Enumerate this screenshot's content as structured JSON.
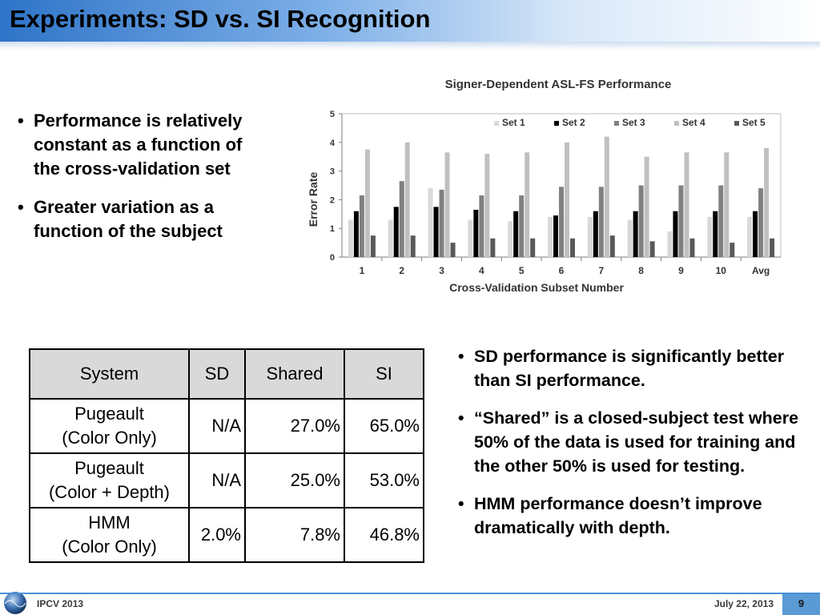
{
  "slide": {
    "title": "Experiments: SD vs. SI Recognition",
    "colors": {
      "title_gradient_start": "#2e74c8",
      "footer_line": "#4a90d9",
      "page_box": "#5b9bd5"
    }
  },
  "left_bullets": [
    "Performance is relatively constant as a function of the cross-validation set",
    "Greater variation as a function of the subject"
  ],
  "right_bullets": [
    "SD performance is significantly better than SI performance.",
    "“Shared” is a closed-subject test where 50% of the data is used for training and the other 50% is used for testing.",
    "HMM performance doesn’t improve dramatically with depth."
  ],
  "chart_data": {
    "type": "bar",
    "title": "Signer-Dependent ASL-FS  Performance",
    "xlabel": "Cross-Validation Subset Number",
    "ylabel": "Error Rate",
    "categories": [
      "1",
      "2",
      "3",
      "4",
      "5",
      "6",
      "7",
      "8",
      "9",
      "10",
      "Avg"
    ],
    "ylim": [
      0,
      5
    ],
    "yticks": [
      "0",
      "1",
      "2",
      "3",
      "4",
      "5"
    ],
    "legend_position": "top-right",
    "grid": false,
    "series": [
      {
        "name": "Set 1",
        "color": "#d9d9d9",
        "values": [
          1.3,
          1.3,
          2.4,
          1.3,
          1.25,
          1.4,
          1.4,
          1.3,
          0.9,
          1.4,
          1.4
        ]
      },
      {
        "name": "Set 2",
        "color": "#000000",
        "values": [
          1.6,
          1.75,
          1.75,
          1.65,
          1.6,
          1.45,
          1.6,
          1.6,
          1.6,
          1.6,
          1.6
        ]
      },
      {
        "name": "Set 3",
        "color": "#808080",
        "values": [
          2.15,
          2.65,
          2.35,
          2.15,
          2.15,
          2.45,
          2.45,
          2.5,
          2.5,
          2.5,
          2.4
        ]
      },
      {
        "name": "Set 4",
        "color": "#c0c0c0",
        "values": [
          3.75,
          4.0,
          3.65,
          3.6,
          3.65,
          4.0,
          4.2,
          3.5,
          3.65,
          3.65,
          3.8
        ]
      },
      {
        "name": "Set 5",
        "color": "#595959",
        "values": [
          0.75,
          0.75,
          0.5,
          0.65,
          0.65,
          0.65,
          0.75,
          0.55,
          0.65,
          0.5,
          0.65
        ]
      }
    ]
  },
  "results_table": {
    "headers": [
      "System",
      "SD",
      "Shared",
      "SI"
    ],
    "rows": [
      {
        "name_line1": "Pugeault",
        "name_line2": "(Color Only)",
        "sd": "N/A",
        "shared": "27.0%",
        "si": "65.0%"
      },
      {
        "name_line1": "Pugeault",
        "name_line2": "(Color + Depth)",
        "sd": "N/A",
        "shared": "25.0%",
        "si": "53.0%"
      },
      {
        "name_line1": "HMM",
        "name_line2": "(Color Only)",
        "sd": "2.0%",
        "shared": "7.8%",
        "si": "46.8%"
      }
    ]
  },
  "footer": {
    "conference": "IPCV 2013",
    "date": "July 22, 2013",
    "page": "9",
    "logo_icon": "globe-icon"
  }
}
